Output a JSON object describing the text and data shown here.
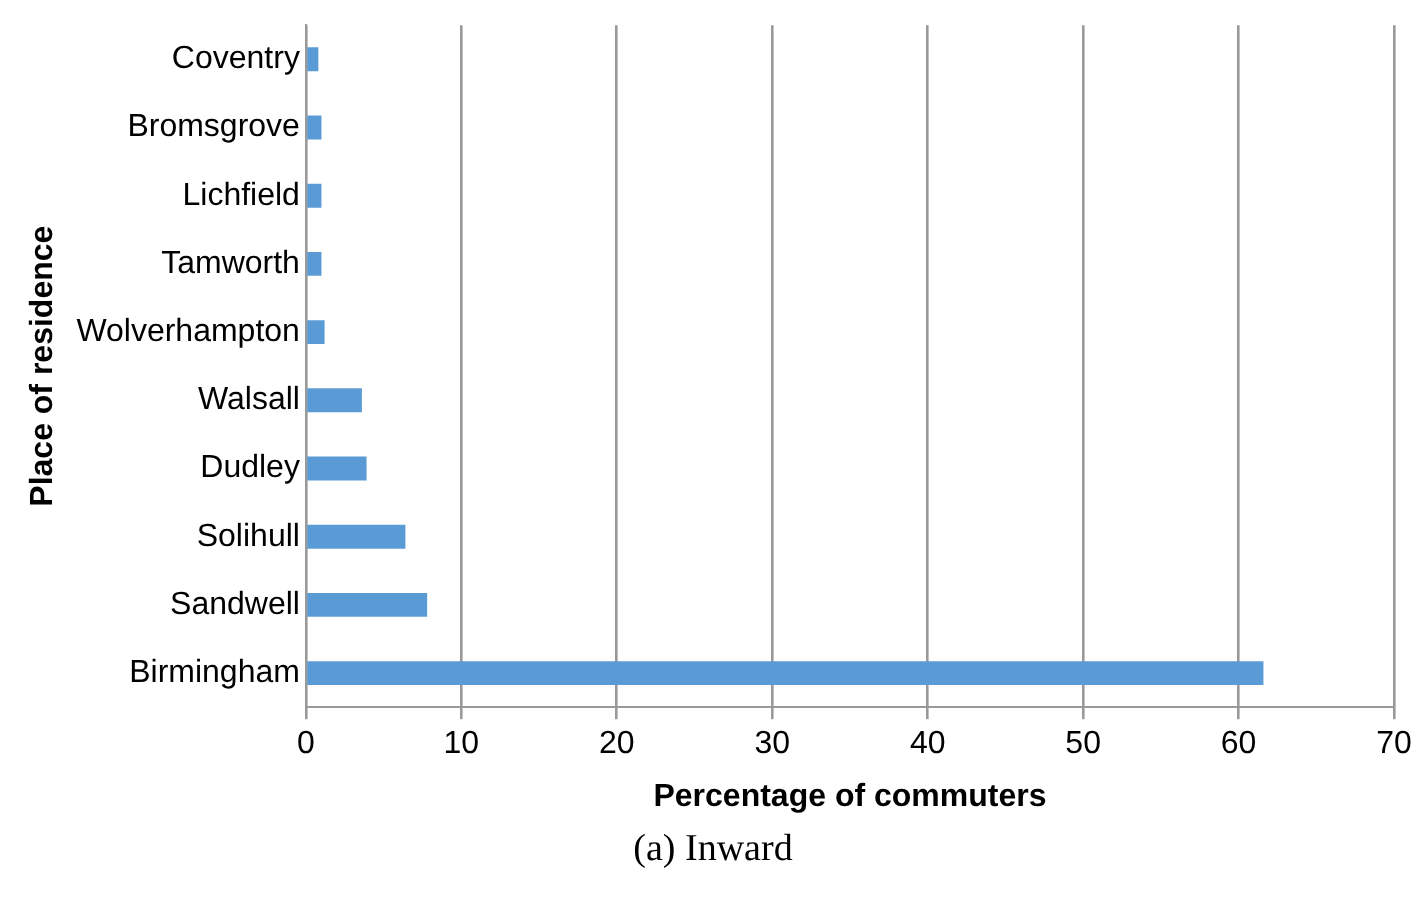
{
  "chart_data": {
    "type": "bar",
    "orientation": "horizontal",
    "categories": [
      "Coventry",
      "Bromsgrove",
      "Lichfield",
      "Tamworth",
      "Wolverhampton",
      "Walsall",
      "Dudley",
      "Solihull",
      "Sandwell",
      "Birmingham"
    ],
    "values": [
      0.8,
      1.0,
      1.0,
      1.0,
      1.2,
      3.6,
      3.9,
      6.4,
      7.8,
      61.6
    ],
    "color": "#5b9bd5",
    "xlim": [
      0,
      70
    ],
    "xticks": [
      0,
      10,
      20,
      30,
      40,
      50,
      60,
      70
    ],
    "grid": "x",
    "legend": false,
    "xlabel": "Percentage of commuters",
    "ylabel": "Place of residence",
    "annotations": [
      "(a) Inward"
    ]
  }
}
